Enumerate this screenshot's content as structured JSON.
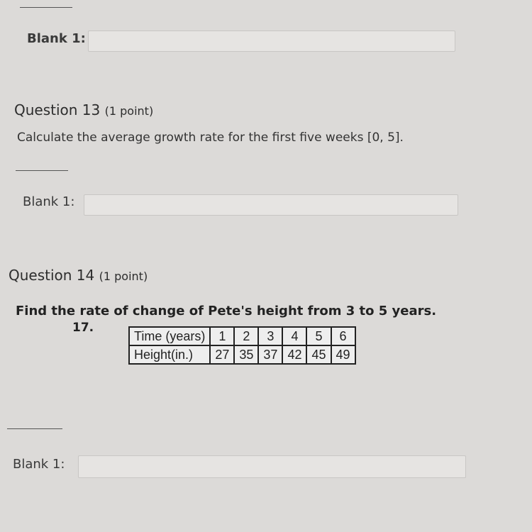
{
  "blank_label": "Blank 1:",
  "q13": {
    "title": "Question 13",
    "points": "(1 point)",
    "text": "Calculate the average growth rate for the first five weeks [0, 5]."
  },
  "q14": {
    "title": "Question 14",
    "points": "(1 point)",
    "text": "Find the rate of change of Pete's height from 3 to 5 years.",
    "number": "17.",
    "table": {
      "row1": [
        "Time (years)",
        "1",
        "2",
        "3",
        "4",
        "5",
        "6"
      ],
      "row2": [
        "Height(in.)",
        "27",
        "35",
        "37",
        "42",
        "45",
        "49"
      ]
    }
  }
}
